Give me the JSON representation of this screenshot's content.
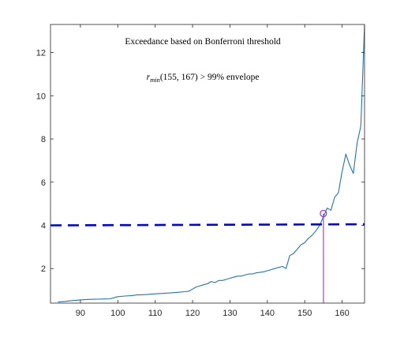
{
  "chart_data": {
    "type": "line",
    "title": "",
    "xlabel": "",
    "ylabel": "",
    "xlim": [
      82,
      166
    ],
    "ylim": [
      0.4,
      13.3
    ],
    "xticks": [
      90,
      100,
      110,
      120,
      130,
      140,
      150,
      160
    ],
    "yticks": [
      2,
      4,
      6,
      8,
      10,
      12
    ],
    "grid": false,
    "annotation_title": "Exceedance based on Bonferroni threshold",
    "annotation_formula": {
      "prefix": "r",
      "subscript": "min",
      "rest": "(155, 167) > 99% envelope"
    },
    "series": [
      {
        "style": "solid",
        "color": "#1f77b4",
        "x": [
          84,
          86,
          88,
          90,
          92,
          94,
          96,
          98,
          99,
          100,
          102,
          104,
          105,
          106,
          108,
          110,
          112,
          114,
          116,
          118,
          119,
          120,
          121,
          122,
          123,
          124,
          125,
          126,
          127,
          128,
          129,
          130,
          131,
          132,
          133,
          134,
          135,
          136,
          137,
          138,
          139,
          140,
          141,
          142,
          143,
          144,
          145,
          146,
          147,
          148,
          149,
          150,
          151,
          152,
          153,
          154,
          155,
          156,
          157,
          158,
          159,
          160,
          161,
          162,
          163,
          164,
          165,
          166
        ],
        "y": [
          0.45,
          0.48,
          0.52,
          0.55,
          0.57,
          0.58,
          0.59,
          0.6,
          0.65,
          0.7,
          0.73,
          0.75,
          0.78,
          0.78,
          0.8,
          0.83,
          0.85,
          0.87,
          0.9,
          0.93,
          0.95,
          1.05,
          1.15,
          1.2,
          1.25,
          1.3,
          1.4,
          1.35,
          1.45,
          1.45,
          1.5,
          1.55,
          1.6,
          1.65,
          1.65,
          1.7,
          1.75,
          1.75,
          1.8,
          1.82,
          1.85,
          1.9,
          1.95,
          2.0,
          2.05,
          2.1,
          2.0,
          2.6,
          2.7,
          2.9,
          3.1,
          3.2,
          3.4,
          3.55,
          3.75,
          4.0,
          4.4,
          4.8,
          4.7,
          5.3,
          5.5,
          6.5,
          7.3,
          6.8,
          6.4,
          7.8,
          8.6,
          13.3
        ]
      },
      {
        "style": "dashed",
        "color": "#0000ee",
        "x": [
          82,
          166
        ],
        "y": [
          4.0,
          4.05
        ]
      }
    ],
    "marker": {
      "x": 155,
      "y": 4.55,
      "color": "#9933cc"
    }
  }
}
